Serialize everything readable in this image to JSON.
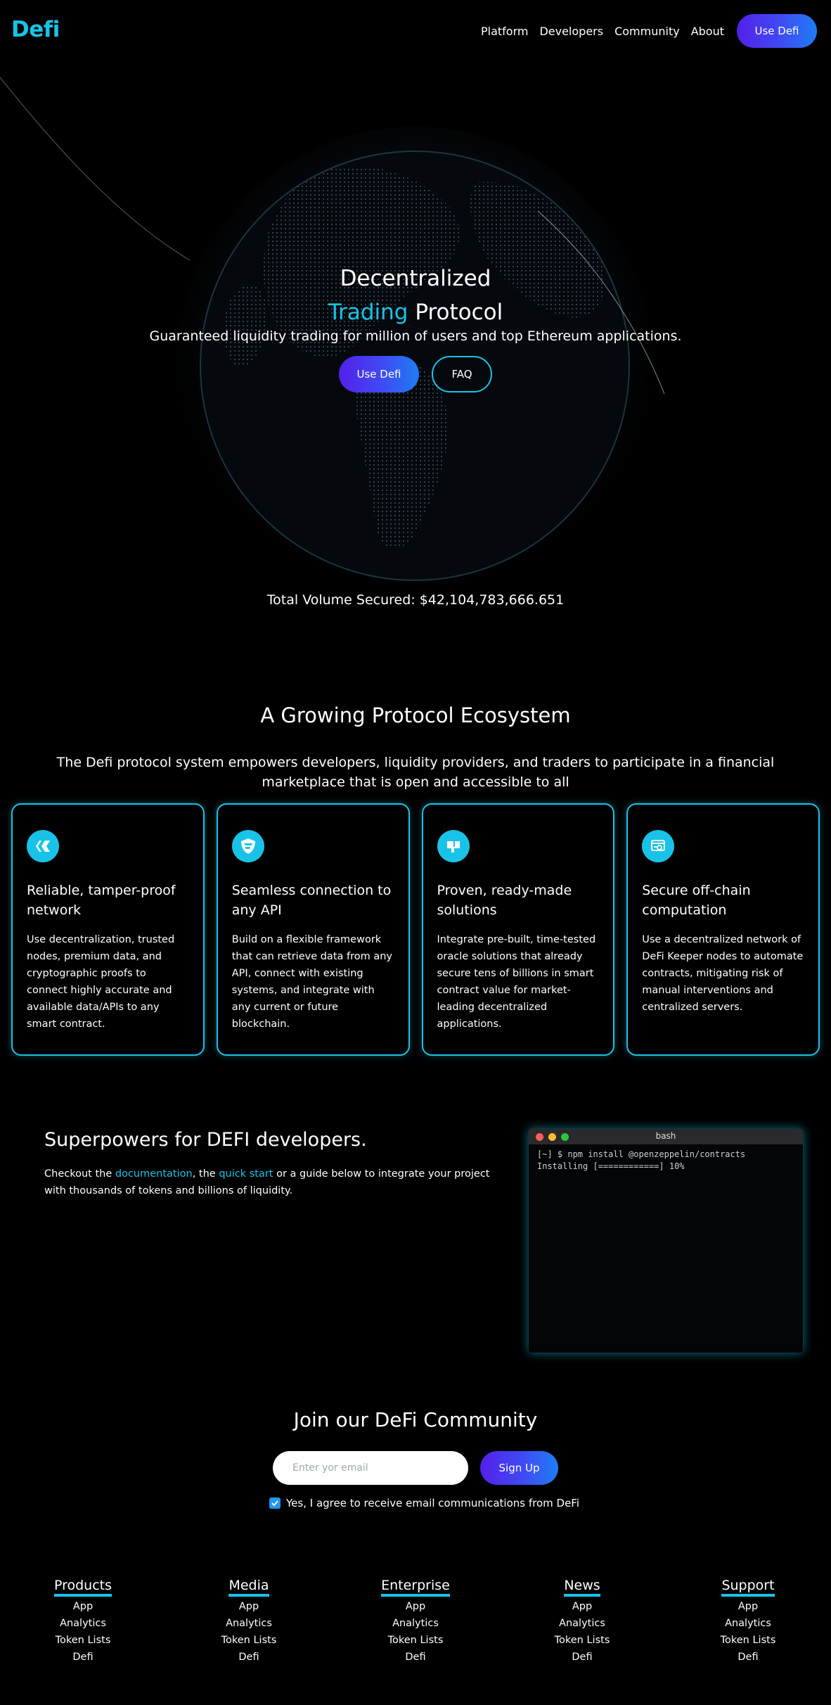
{
  "nav": {
    "logo": "Defi",
    "links": [
      "Platform",
      "Developers",
      "Community",
      "About"
    ],
    "cta": "Use Defi"
  },
  "hero": {
    "title_line1": "Decentralized",
    "title_accent": "Trading",
    "title_rest": " Protocol",
    "subtitle": "Guaranteed liquidity trading for million of users and top Ethereum applications.",
    "primary_button": "Use Defi",
    "secondary_button": "FAQ",
    "volume": "Total Volume Secured: $42,104,783,666.651"
  },
  "ecosystem": {
    "title": "A Growing Protocol Ecosystem",
    "description": "The Defi protocol system empowers developers, liquidity providers, and traders to participate in a financial marketplace that is open and accessible to all",
    "cards": [
      {
        "icon": "hive-icon",
        "title": "Reliable, tamper-proof network",
        "text": "Use decentralization, trusted nodes, premium data, and cryptographic proofs to connect highly accurate and available data/APIs to any smart contract."
      },
      {
        "icon": "shield-icon",
        "title": "Seamless connection to any API",
        "text": "Build on a flexible framework that can retrieve data from any API, connect with existing systems, and integrate with any current or future blockchain."
      },
      {
        "icon": "box-icon",
        "title": "Proven, ready-made solutions",
        "text": "Integrate pre-built, time-tested oracle solutions that already secure tens of billions in smart contract value for market-leading decentralized applications."
      },
      {
        "icon": "server-gear-icon",
        "title": "Secure off-chain computation",
        "text": "Use a decentralized network of DeFi Keeper nodes to automate contracts, mitigating risk of manual interventions and centralized servers."
      }
    ]
  },
  "developers": {
    "title": "Superpowers for DEFI developers.",
    "text_1": "Checkout the ",
    "link_1": "documentation",
    "text_2": ", the ",
    "link_2": "quick start",
    "text_3": " or a guide below to integrate your project with thousands of tokens and billions of liquidity.",
    "terminal": {
      "title": "bash",
      "line1": "[~] $ npm install @openzeppelin/contracts",
      "line2": "Installing [============] 10%"
    }
  },
  "community": {
    "title": "Join our DeFi Community",
    "email_placeholder": "Enter yor email",
    "signup_button": "Sign Up",
    "agree_text": "Yes, I agree to receive email communications from DeFi"
  },
  "footer": {
    "columns": [
      {
        "heading": "Products",
        "items": [
          "App",
          "Analytics",
          "Token Lists",
          "Defi"
        ]
      },
      {
        "heading": "Media",
        "items": [
          "App",
          "Analytics",
          "Token Lists",
          "Defi"
        ]
      },
      {
        "heading": "Enterprise",
        "items": [
          "App",
          "Analytics",
          "Token Lists",
          "Defi"
        ]
      },
      {
        "heading": "News",
        "items": [
          "App",
          "Analytics",
          "Token Lists",
          "Defi"
        ]
      },
      {
        "heading": "Support",
        "items": [
          "App",
          "Analytics",
          "Token Lists",
          "Defi"
        ]
      }
    ]
  },
  "colors": {
    "accent": "#19c3e8",
    "gradient_start": "#5320ea",
    "gradient_end": "#1e7df5",
    "background": "#000000"
  }
}
